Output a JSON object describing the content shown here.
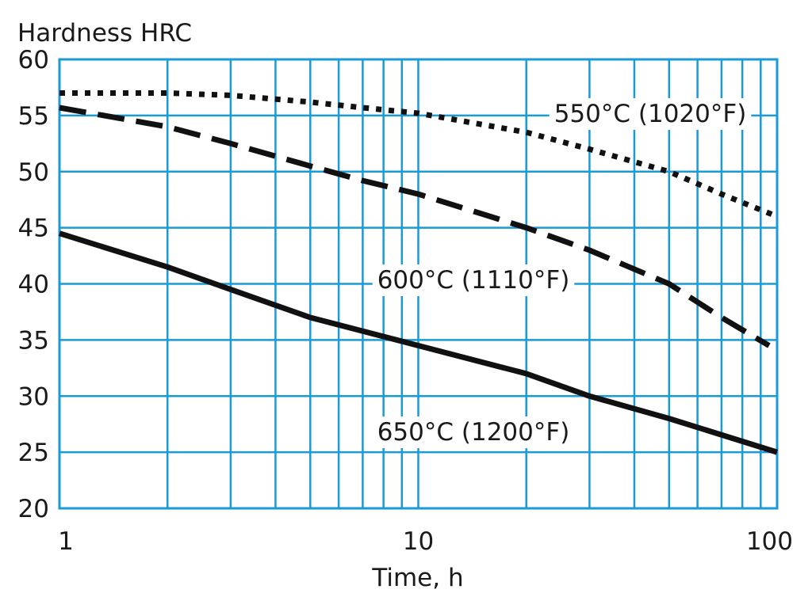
{
  "chart_data": {
    "type": "line",
    "title": "",
    "ylabel": "Hardness HRC",
    "xlabel": "Time, h",
    "xscale": "log",
    "xlim": [
      1,
      100
    ],
    "ylim": [
      20,
      60
    ],
    "x_ticks": [
      1,
      10,
      100
    ],
    "x_tick_labels": [
      "1",
      "10",
      "100"
    ],
    "y_ticks": [
      20,
      25,
      30,
      35,
      40,
      45,
      50,
      55,
      60
    ],
    "y_tick_labels": [
      "20",
      "25",
      "30",
      "35",
      "40",
      "45",
      "50",
      "55",
      "60"
    ],
    "grid": true,
    "colors": {
      "grid": "#1a9ad6",
      "lines": "#111111"
    },
    "series": [
      {
        "name": "550°C (1020°F)",
        "style": "dotted",
        "x": [
          1,
          2,
          3,
          5,
          7,
          10,
          20,
          30,
          50,
          70,
          100
        ],
        "y": [
          57,
          57,
          56.8,
          56.2,
          55.7,
          55.2,
          53.5,
          52,
          50,
          48,
          46
        ]
      },
      {
        "name": "600°C (1110°F)",
        "style": "dashed",
        "x": [
          1,
          2,
          3,
          5,
          7,
          10,
          20,
          30,
          50,
          70,
          95
        ],
        "y": [
          55.7,
          54,
          52.5,
          50.5,
          49.2,
          48,
          45,
          43,
          40,
          37,
          34.5
        ]
      },
      {
        "name": "650°C (1200°F)",
        "style": "solid",
        "x": [
          1,
          2,
          3,
          5,
          10,
          20,
          30,
          50,
          100
        ],
        "y": [
          44.5,
          41.5,
          39.5,
          37,
          34.5,
          32,
          30,
          28,
          25
        ]
      }
    ]
  }
}
